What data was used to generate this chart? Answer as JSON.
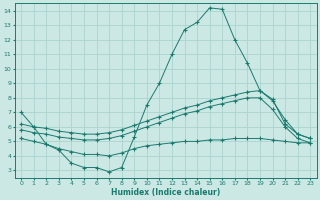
{
  "xlabel": "Humidex (Indice chaleur)",
  "xlim": [
    -0.5,
    23.5
  ],
  "ylim": [
    2.5,
    14.5
  ],
  "xticks": [
    0,
    1,
    2,
    3,
    4,
    5,
    6,
    7,
    8,
    9,
    10,
    11,
    12,
    13,
    14,
    15,
    16,
    17,
    18,
    19,
    20,
    21,
    22,
    23
  ],
  "yticks": [
    3,
    4,
    5,
    6,
    7,
    8,
    9,
    10,
    11,
    12,
    13,
    14
  ],
  "bg_color": "#cce8e4",
  "grid_color": "#aad4ce",
  "line_color": "#1a7a6e",
  "line1_y": [
    7.0,
    6.0,
    4.8,
    4.4,
    3.5,
    3.2,
    3.2,
    2.9,
    3.2,
    5.3,
    7.5,
    9.0,
    11.0,
    12.7,
    13.2,
    14.2,
    14.1,
    12.0,
    10.4,
    8.5,
    7.9,
    6.2,
    5.5,
    5.2
  ],
  "line2_y": [
    6.2,
    6.0,
    5.9,
    5.7,
    5.6,
    5.5,
    5.5,
    5.6,
    5.8,
    6.1,
    6.4,
    6.7,
    7.0,
    7.3,
    7.5,
    7.8,
    8.0,
    8.2,
    8.4,
    8.5,
    7.8,
    6.5,
    5.5,
    5.2
  ],
  "line3_y": [
    5.8,
    5.6,
    5.5,
    5.3,
    5.2,
    5.1,
    5.1,
    5.2,
    5.4,
    5.7,
    6.0,
    6.3,
    6.6,
    6.9,
    7.1,
    7.4,
    7.6,
    7.8,
    8.0,
    8.0,
    7.2,
    6.0,
    5.2,
    4.9
  ],
  "line4_y": [
    5.2,
    5.0,
    4.8,
    4.5,
    4.3,
    4.1,
    4.1,
    4.0,
    4.2,
    4.5,
    4.7,
    4.8,
    4.9,
    5.0,
    5.0,
    5.1,
    5.1,
    5.2,
    5.2,
    5.2,
    5.1,
    5.0,
    4.9,
    4.9
  ]
}
